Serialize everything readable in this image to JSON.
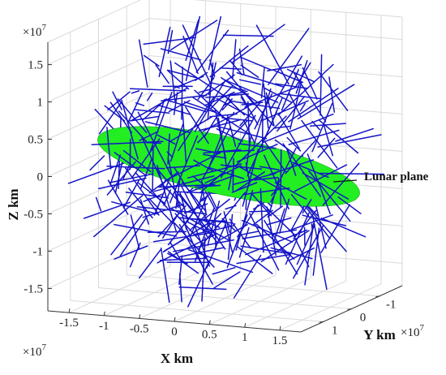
{
  "chart_data": {
    "type": "scatter",
    "view": "3d",
    "xlabel": "X km",
    "ylabel": "Y km",
    "zlabel": "Z km",
    "xlim": [
      -1.8,
      1.8
    ],
    "ylim": [
      -1.8,
      1.8
    ],
    "zlim": [
      -1.8,
      1.8
    ],
    "multiplier": {
      "base": "×10",
      "exponent": "7"
    },
    "x_ticks": [
      "-1.5",
      "-1",
      "-0.5",
      "0",
      "0.5",
      "1",
      "1.5"
    ],
    "y_ticks": [
      "-1",
      "0",
      "1"
    ],
    "z_ticks": [
      "1.5",
      "1",
      "0.5",
      "0",
      "-0.5",
      "-1",
      "-1.5"
    ],
    "x_tick_values": [
      -1.5,
      -1,
      -0.5,
      0,
      0.5,
      1,
      1.5
    ],
    "y_tick_values": [
      -1,
      0,
      1
    ],
    "z_tick_values": [
      1.5,
      1,
      0.5,
      0,
      -0.5,
      -1,
      -1.5
    ],
    "grid": true,
    "series": [
      {
        "name": "",
        "kind": "random line segments",
        "color": "#1414c8",
        "count": 420,
        "sphere_radius": 1.8
      },
      {
        "name": "",
        "kind": "filled ellipse (lunar plane)",
        "color": "#22ee22"
      }
    ],
    "annotations": [
      {
        "text": "Lunar plane"
      }
    ]
  },
  "colors": {
    "segments": "#1414c8",
    "plane": "#22ee22",
    "grid": "#d9d9d9",
    "axes": "#333333"
  }
}
